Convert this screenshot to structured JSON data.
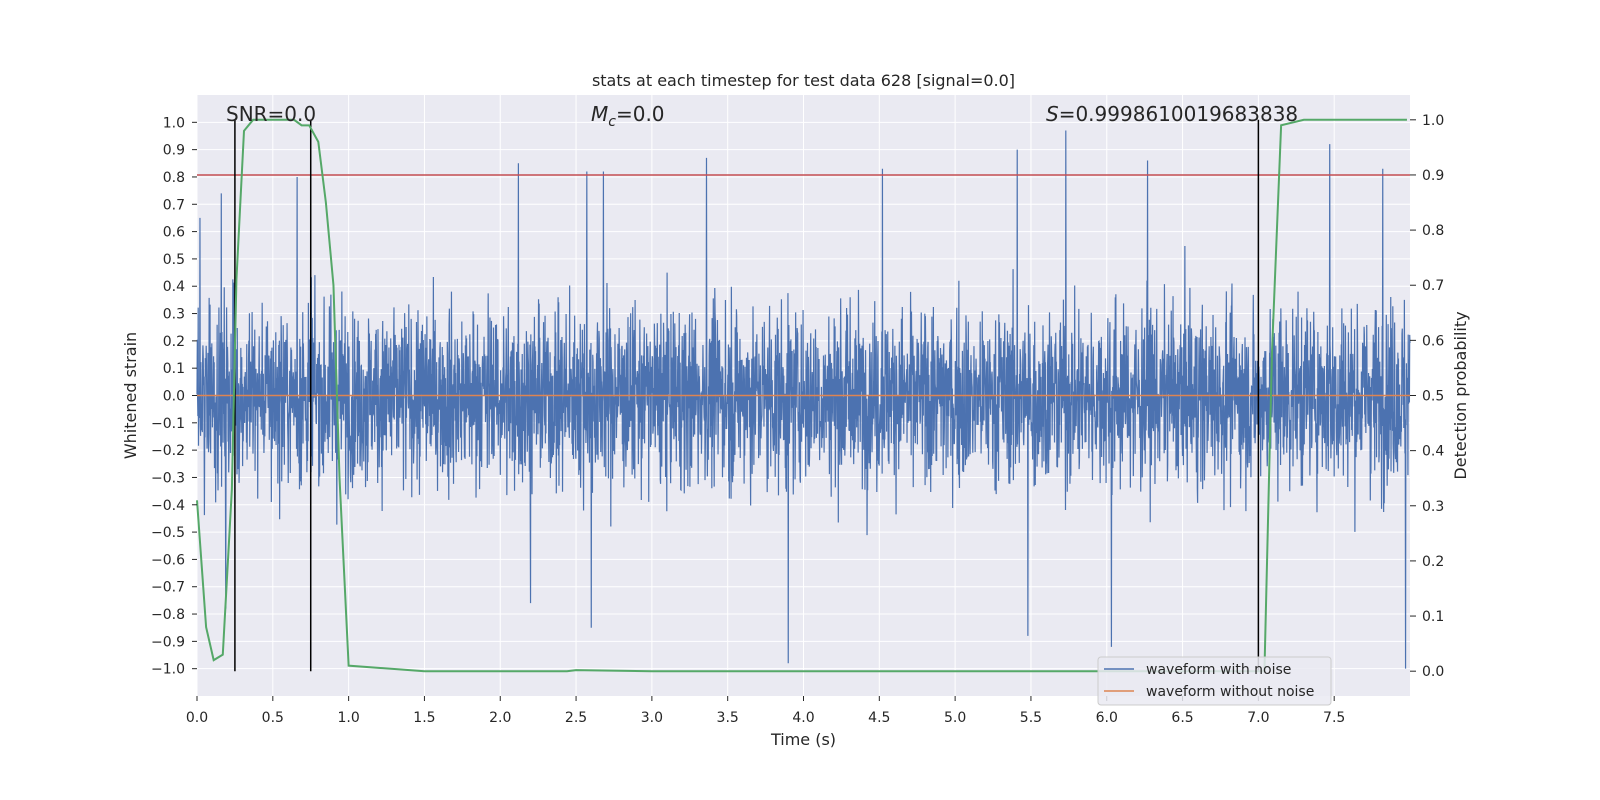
{
  "chart_data": {
    "type": "line",
    "title": "stats at each timestep for test data 628 [signal=0.0]",
    "xlabel": "Time (s)",
    "ylabel": "Whitened strain",
    "ylabel_right": "Detection probability",
    "xlim": [
      0.0,
      8.0
    ],
    "ylim": [
      -1.1,
      1.1
    ],
    "ylim_right": [
      -0.045,
      1.045
    ],
    "x_ticks": [
      "0.0",
      "0.5",
      "1.0",
      "1.5",
      "2.0",
      "2.5",
      "3.0",
      "3.5",
      "4.0",
      "4.5",
      "5.0",
      "5.5",
      "6.0",
      "6.5",
      "7.0",
      "7.5"
    ],
    "y_ticks": [
      "1.0",
      "0.9",
      "0.8",
      "0.7",
      "0.6",
      "0.5",
      "0.4",
      "0.3",
      "0.2",
      "0.1",
      "0.0",
      "−0.1",
      "−0.2",
      "−0.3",
      "−0.4",
      "−0.5",
      "−0.6",
      "−0.7",
      "−0.8",
      "−0.9",
      "−1.0"
    ],
    "y_ticks_right": [
      "1.0",
      "0.9",
      "0.8",
      "0.7",
      "0.6",
      "0.5",
      "0.4",
      "0.3",
      "0.2",
      "0.1",
      "0.0"
    ],
    "annotations": {
      "snr": "SNR=0.0",
      "mc_symbol": "M",
      "mc_sub": "c",
      "mc_value": "=0.0",
      "s_symbol": "S",
      "s_value": "=0.9998610019683838"
    },
    "legend": {
      "placement": "lower-right",
      "entries": [
        "waveform with noise",
        "waveform without noise"
      ]
    },
    "colors": {
      "noise": "#4c72b0",
      "clean": "#dd8452",
      "prob": "#55a868",
      "threshold": "#c44e52",
      "vline": "#000000",
      "plot_bg": "#eaeaf2",
      "grid": "#ffffff"
    },
    "series": [
      {
        "name": "waveform with noise",
        "noise_std": 0.16,
        "samples": 4096,
        "peaks": [
          {
            "x": 0.02,
            "y": 0.65
          },
          {
            "x": 0.16,
            "y": 0.74
          },
          {
            "x": 0.19,
            "y": -0.78
          },
          {
            "x": 0.66,
            "y": 0.8
          },
          {
            "x": 2.12,
            "y": 0.85
          },
          {
            "x": 2.2,
            "y": -0.76
          },
          {
            "x": 2.57,
            "y": 0.82
          },
          {
            "x": 2.6,
            "y": -0.85
          },
          {
            "x": 2.68,
            "y": 0.82
          },
          {
            "x": 3.36,
            "y": 0.87
          },
          {
            "x": 3.9,
            "y": -0.98
          },
          {
            "x": 4.52,
            "y": 0.83
          },
          {
            "x": 5.41,
            "y": 0.9
          },
          {
            "x": 5.48,
            "y": -0.88
          },
          {
            "x": 5.73,
            "y": 0.97
          },
          {
            "x": 6.03,
            "y": -0.92
          },
          {
            "x": 6.27,
            "y": 0.86
          },
          {
            "x": 7.47,
            "y": 0.92
          },
          {
            "x": 7.82,
            "y": 0.83
          },
          {
            "x": 7.97,
            "y": -1.0
          }
        ]
      },
      {
        "name": "waveform without noise",
        "x": [
          0.0,
          8.0
        ],
        "y": [
          0.0,
          0.0
        ]
      },
      {
        "name": "Detection probability",
        "axis": "right",
        "x": [
          0.0,
          0.06,
          0.11,
          0.17,
          0.23,
          0.26,
          0.31,
          0.37,
          0.43,
          0.5,
          0.55,
          0.6,
          0.64,
          0.69,
          0.74,
          0.8,
          0.85,
          0.9,
          0.94,
          1.0,
          1.5,
          2.0,
          2.44,
          2.5,
          3.0,
          4.0,
          5.0,
          6.0,
          6.5,
          6.99,
          7.04,
          7.09,
          7.15,
          7.3,
          7.98
        ],
        "y": [
          0.31,
          0.08,
          0.02,
          0.03,
          0.33,
          0.71,
          0.98,
          1.0,
          1.0,
          1.0,
          1.0,
          1.0,
          1.0,
          0.99,
          0.99,
          0.96,
          0.85,
          0.7,
          0.35,
          0.01,
          0.0,
          0.0,
          0.0,
          0.002,
          0.0,
          0.0,
          0.0,
          0.0,
          0.0,
          0.0,
          0.0,
          0.58,
          0.99,
          1.0,
          1.0
        ]
      }
    ],
    "threshold_right": 0.9,
    "vlines_x": [
      0.25,
      0.75,
      7.0
    ]
  }
}
